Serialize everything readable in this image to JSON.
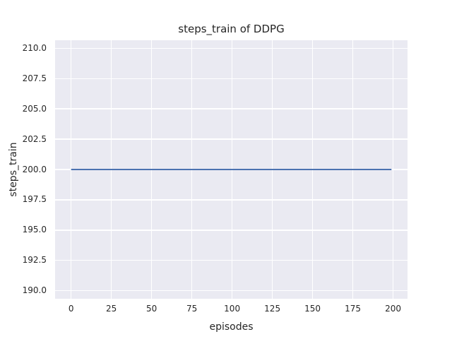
{
  "chart_data": {
    "type": "line",
    "title": "steps_train of DDPG",
    "xlabel": "episodes",
    "ylabel": "steps_train",
    "x_ticks": [
      0,
      25,
      50,
      75,
      100,
      125,
      150,
      175,
      200
    ],
    "x_tick_labels": [
      "0",
      "25",
      "50",
      "75",
      "100",
      "125",
      "150",
      "175",
      "200"
    ],
    "y_ticks": [
      210.0,
      207.5,
      205.0,
      202.5,
      200.0,
      197.5,
      195.0,
      192.5,
      190.0
    ],
    "y_tick_labels": [
      "210.0",
      "207.5",
      "205.0",
      "202.5",
      "200.0",
      "197.5",
      "195.0",
      "192.5",
      "190.0"
    ],
    "xlim": [
      -9.95,
      208.95
    ],
    "ylim": [
      189.33,
      210.67
    ],
    "grid": true,
    "legend_visible": false,
    "series": [
      {
        "name": "steps_train",
        "x": [
          0,
          199
        ],
        "y": [
          200,
          200
        ],
        "color": "#4c72b0",
        "linewidth": 2
      }
    ],
    "style": {
      "figure_background": "#ffffff",
      "plot_background": "#eaeaf2",
      "grid_color": "#ffffff",
      "text_color": "#262626"
    }
  }
}
